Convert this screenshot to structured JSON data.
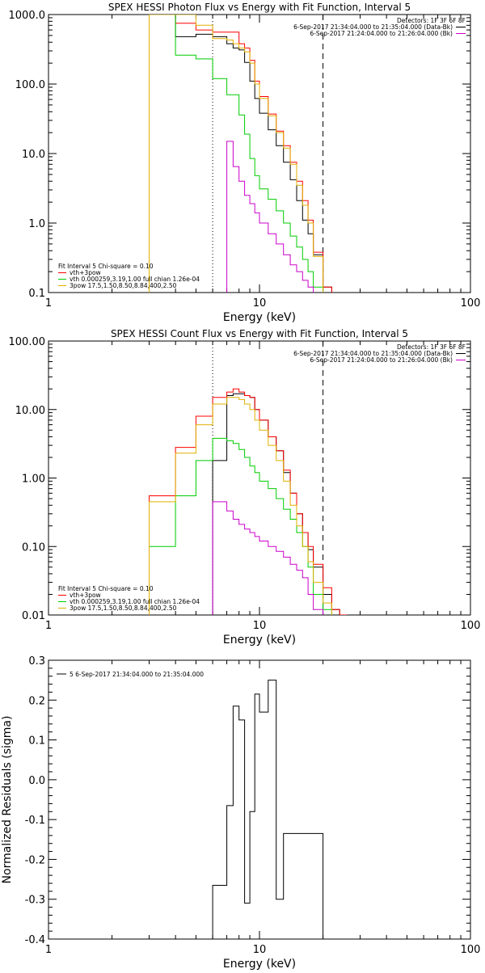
{
  "chart_data": [
    {
      "type": "line",
      "panel": "photon",
      "title": "SPEX HESSI Photon Flux vs Energy with Fit Function, Interval 5",
      "xlabel": "Energy (keV)",
      "ylabel": "",
      "xscale": "log",
      "yscale": "log",
      "xlim": [
        1,
        100
      ],
      "ylim": [
        0.1,
        1000
      ],
      "xticks": [
        {
          "v": 1,
          "label": "1"
        },
        {
          "v": 10,
          "label": "10"
        },
        {
          "v": 100,
          "label": "100"
        }
      ],
      "yticks": [
        {
          "v": 0.1,
          "label": "0.1"
        },
        {
          "v": 1,
          "label": "1.0"
        },
        {
          "v": 10,
          "label": "10.0"
        },
        {
          "v": 100,
          "label": "100.0"
        },
        {
          "v": 1000,
          "label": "1000.0"
        }
      ],
      "vlines": [
        {
          "x": 6,
          "style": "dotted",
          "color": "#000000"
        },
        {
          "x": 20,
          "style": "dashed",
          "color": "#000000"
        }
      ],
      "detectors": "Detectors: 1F 3F 6F 8F",
      "time_labels": [
        {
          "text": "6-Sep-2017 21:34:04.000 to 21:35:04.000 (Data-Bk)",
          "color": "#000000"
        },
        {
          "text": "6-Sep-2017 21:24:04.000 to 21:26:04.000 (Bk)",
          "color": "#cc00cc"
        }
      ],
      "fit_legend": {
        "header": "Fit Interval  5     Chi-square = 0.10",
        "items": [
          {
            "text": "vth+3pow",
            "color": "#ff0000"
          },
          {
            "text": "vth 0.000259,3.19,1.00   full chian 1.26e-04",
            "color": "#00cc00"
          },
          {
            "text": "3pow 17.5,1.50,8.50,8.84,400,2.50",
            "color": "#e0b000"
          }
        ]
      },
      "edges": [
        3,
        4,
        5,
        6,
        7,
        7.5,
        8,
        8.5,
        9,
        9.5,
        10,
        11,
        12,
        13,
        14,
        15,
        16,
        17,
        18,
        20,
        22,
        24
      ],
      "series": [
        {
          "name": "Data-Bk",
          "color": "#000000",
          "values": [
            1000,
            480,
            520,
            480,
            380,
            330,
            310,
            205,
            110,
            62,
            38,
            22,
            13,
            7.5,
            4.2,
            2.1,
            1.1,
            0.7,
            0.35,
            0.12,
            null
          ]
        },
        {
          "name": "vth+3pow",
          "color": "#ff0000",
          "values": [
            1050,
            750,
            600,
            560,
            560,
            560,
            380,
            330,
            220,
            110,
            66,
            37,
            21,
            13,
            7.5,
            4,
            2.1,
            1.1,
            0.38,
            0.12,
            null
          ]
        },
        {
          "name": "vth",
          "color": "#00cc00",
          "values": [
            1000,
            260,
            230,
            120,
            70,
            70,
            36,
            19,
            8.5,
            4.8,
            3.1,
            2.2,
            1.5,
            1.0,
            0.65,
            0.45,
            0.3,
            0.2,
            0.12,
            null,
            null
          ]
        },
        {
          "name": "3pow",
          "color": "#e0b000",
          "values": [
            1000,
            1000,
            700,
            450,
            430,
            380,
            330,
            290,
            200,
            100,
            62,
            35,
            20,
            12,
            7,
            3.5,
            1.8,
            1.0,
            0.33,
            null,
            null
          ]
        },
        {
          "name": "Bk",
          "color": "#cc00cc",
          "values": [
            null,
            null,
            null,
            null,
            15,
            6.5,
            4.0,
            2.5,
            1.9,
            1.4,
            1.0,
            0.7,
            0.5,
            0.35,
            0.25,
            0.2,
            0.15,
            0.12,
            null,
            null,
            null
          ]
        }
      ]
    },
    {
      "type": "line",
      "panel": "count",
      "title": "SPEX HESSI Count Flux vs Energy with Fit Function, Interval 5",
      "xlabel": "Energy (keV)",
      "ylabel": "",
      "xscale": "log",
      "yscale": "log",
      "xlim": [
        1,
        100
      ],
      "ylim": [
        0.01,
        100
      ],
      "xticks": [
        {
          "v": 1,
          "label": "1"
        },
        {
          "v": 10,
          "label": "10"
        },
        {
          "v": 100,
          "label": "100"
        }
      ],
      "yticks": [
        {
          "v": 0.01,
          "label": "0.01"
        },
        {
          "v": 0.1,
          "label": "0.10"
        },
        {
          "v": 1,
          "label": "1.00"
        },
        {
          "v": 10,
          "label": "10.00"
        },
        {
          "v": 100,
          "label": "100.00"
        }
      ],
      "vlines": [
        {
          "x": 6,
          "style": "dotted",
          "color": "#000000"
        },
        {
          "x": 20,
          "style": "dashed",
          "color": "#000000"
        }
      ],
      "detectors": "Detectors: 1F 3F 6F 8F",
      "time_labels": [
        {
          "text": "6-Sep-2017 21:34:04.000 to 21:35:04.000 (Data-Bk)",
          "color": "#000000"
        },
        {
          "text": "6-Sep-2017 21:24:04.000 to 21:26:04.000 (Bk)",
          "color": "#cc00cc"
        }
      ],
      "fit_legend": {
        "header": "Fit Interval  5     Chi-square = 0.10",
        "items": [
          {
            "text": "vth+3pow",
            "color": "#ff0000"
          },
          {
            "text": "vth 0.000259,3.19,1.00   full chian 1.26e-04",
            "color": "#00cc00"
          },
          {
            "text": "3pow 17.5,1.50,8.50,8.84,400,2.50",
            "color": "#e0b000"
          }
        ]
      },
      "edges": [
        3,
        4,
        5,
        6,
        7,
        7.5,
        8,
        8.5,
        9,
        9.5,
        10,
        11,
        12,
        13,
        14,
        15,
        16,
        17,
        18,
        20,
        22,
        24,
        26
      ],
      "series": [
        {
          "name": "Data-Bk",
          "color": "#000000",
          "values": [
            null,
            null,
            null,
            1.8,
            16,
            17,
            17,
            16,
            15,
            10,
            7,
            4,
            2.5,
            1.2,
            0.6,
            0.3,
            0.16,
            0.09,
            0.05,
            0.02,
            0.012,
            null
          ]
        },
        {
          "name": "vth+3pow",
          "color": "#ff0000",
          "values": [
            0.55,
            2.8,
            8,
            15,
            18,
            20,
            18,
            16,
            15,
            10,
            7,
            4,
            2.5,
            1.3,
            0.6,
            0.3,
            0.16,
            0.1,
            0.055,
            0.025,
            0.012,
            0.01
          ]
        },
        {
          "name": "vth",
          "color": "#00cc00",
          "values": [
            0.1,
            0.55,
            1.8,
            3.8,
            3.5,
            3.2,
            2.6,
            2.0,
            1.5,
            1.2,
            0.9,
            0.7,
            0.5,
            0.35,
            0.25,
            0.16,
            0.1,
            0.05,
            0.02,
            0.012,
            null,
            null
          ]
        },
        {
          "name": "3pow",
          "color": "#e0b000",
          "values": [
            0.45,
            2.3,
            6,
            12,
            15,
            15,
            14,
            12,
            10,
            7,
            5,
            3,
            1.8,
            0.9,
            0.4,
            0.2,
            0.1,
            0.06,
            0.03,
            0.015,
            null,
            null
          ]
        },
        {
          "name": "Bk",
          "color": "#cc00cc",
          "values": [
            null,
            null,
            null,
            0.45,
            0.33,
            0.25,
            0.21,
            0.18,
            0.16,
            0.14,
            0.12,
            0.1,
            0.085,
            0.07,
            0.055,
            0.045,
            0.035,
            0.02,
            0.012,
            null,
            null,
            null
          ]
        }
      ]
    },
    {
      "type": "line",
      "panel": "residuals",
      "title": "",
      "xlabel": "Energy (keV)",
      "ylabel": "Normalized Residuals (sigma)",
      "xscale": "log",
      "yscale": "linear",
      "xlim": [
        1,
        100
      ],
      "ylim": [
        -0.4,
        0.3
      ],
      "xticks": [
        {
          "v": 1,
          "label": "1"
        },
        {
          "v": 10,
          "label": "10"
        },
        {
          "v": 100,
          "label": "100"
        }
      ],
      "yticks": [
        {
          "v": -0.4,
          "label": "-0.4"
        },
        {
          "v": -0.3,
          "label": "-0.3"
        },
        {
          "v": -0.2,
          "label": "-0.2"
        },
        {
          "v": -0.1,
          "label": "-0.1"
        },
        {
          "v": 0,
          "label": "0.0"
        },
        {
          "v": 0.1,
          "label": "0.1"
        },
        {
          "v": 0.2,
          "label": "0.2"
        },
        {
          "v": 0.3,
          "label": "0.3"
        }
      ],
      "legend": {
        "text": "5  6-Sep-2017 21:34:04.000 to 21:35:04.000",
        "color": "#000000"
      },
      "edges": [
        6,
        7,
        7.5,
        8,
        8.5,
        9,
        9.5,
        10,
        11,
        12,
        13,
        14,
        15,
        16,
        17,
        18,
        20
      ],
      "series": [
        {
          "name": "5",
          "color": "#000000",
          "values": [
            -0.265,
            -0.065,
            0.185,
            0.15,
            -0.31,
            -0.08,
            0.215,
            0.17,
            0.25,
            -0.3,
            -0.135,
            -0.135,
            -0.135,
            -0.135,
            -0.135,
            -0.135
          ]
        }
      ]
    }
  ]
}
